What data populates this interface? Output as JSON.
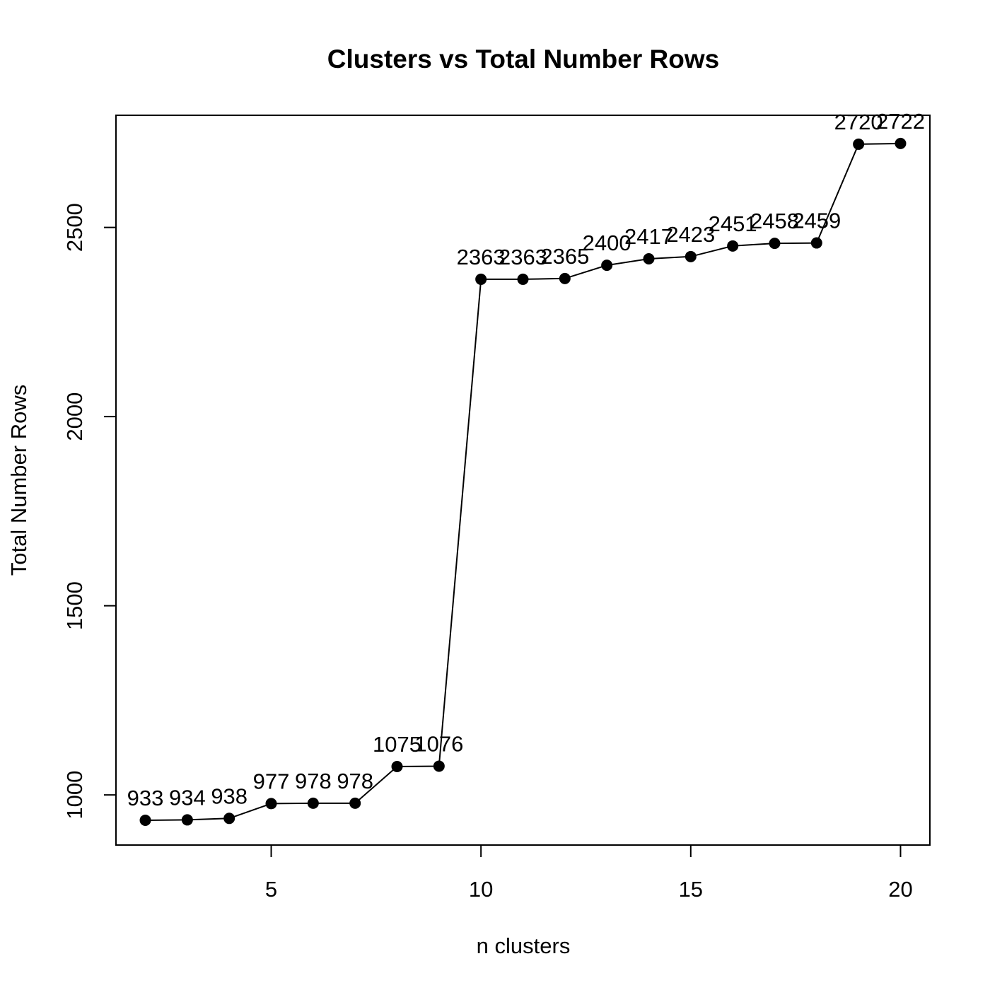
{
  "chart_data": {
    "type": "line",
    "title": "Clusters vs Total Number Rows",
    "xlabel": "n clusters",
    "ylabel": "Total Number Rows",
    "xlim": [
      1.3,
      20.7
    ],
    "ylim": [
      867.5,
      2796.5
    ],
    "x_ticks": [
      5,
      10,
      15,
      20
    ],
    "y_ticks": [
      1000,
      1500,
      2000,
      2500
    ],
    "grid": false,
    "x": [
      2,
      3,
      4,
      5,
      6,
      7,
      8,
      9,
      10,
      11,
      12,
      13,
      14,
      15,
      16,
      17,
      18,
      19,
      20
    ],
    "values": [
      933,
      934,
      938,
      977,
      978,
      978,
      1075,
      1076,
      2363,
      2363,
      2365,
      2400,
      2417,
      2423,
      2451,
      2458,
      2459,
      2720,
      2722
    ],
    "point_labels": [
      "933",
      "934",
      "938",
      "977",
      "978",
      "978",
      "1075",
      "1076",
      "2363",
      "2363",
      "2365",
      "2400",
      "2417",
      "2423",
      "2451",
      "2458",
      "2459",
      "2720",
      "2722"
    ]
  }
}
